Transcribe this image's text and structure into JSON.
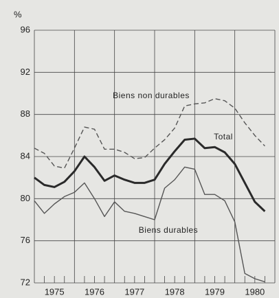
{
  "chart_data": {
    "type": "line",
    "y_unit": "%",
    "x": [
      1975,
      1975.25,
      1975.5,
      1975.75,
      1976,
      1976.25,
      1976.5,
      1976.75,
      1977,
      1977.25,
      1977.5,
      1977.75,
      1978,
      1978.25,
      1978.5,
      1978.75,
      1979,
      1979.25,
      1979.5,
      1979.75,
      1980,
      1980.25,
      1980.5,
      1980.75
    ],
    "series": [
      {
        "name": "Biens non durables",
        "color": "#555555",
        "style": "dashed",
        "width": 1.4,
        "values": [
          84.8,
          84.3,
          83.1,
          82.9,
          84.8,
          86.8,
          86.6,
          84.7,
          84.7,
          84.4,
          83.8,
          83.9,
          84.8,
          85.6,
          86.7,
          88.8,
          89.0,
          89.1,
          89.5,
          89.3,
          88.6,
          87.2,
          86.0,
          85.0
        ]
      },
      {
        "name": "Total",
        "color": "#2a2a2a",
        "style": "solid",
        "width": 3,
        "values": [
          82.0,
          81.3,
          81.1,
          81.6,
          82.6,
          84.0,
          83.0,
          81.7,
          82.2,
          81.8,
          81.5,
          81.5,
          81.8,
          83.3,
          84.5,
          85.6,
          85.7,
          84.8,
          84.9,
          84.4,
          83.3,
          81.5,
          79.7,
          78.8
        ]
      },
      {
        "name": "Biens durables",
        "color": "#555555",
        "style": "solid",
        "width": 1.4,
        "values": [
          79.8,
          78.6,
          79.5,
          80.2,
          80.6,
          81.5,
          80.0,
          78.3,
          79.7,
          78.8,
          78.6,
          78.3,
          78.0,
          81.0,
          81.8,
          83.0,
          82.8,
          80.4,
          80.4,
          79.8,
          77.8,
          72.9,
          72.4,
          72.1
        ]
      }
    ],
    "xlim": [
      1975,
      1981
    ],
    "xgrid": [
      1975,
      1976,
      1977,
      1978,
      1979,
      1980,
      1981
    ],
    "xticks": [
      {
        "value": 1975.5,
        "label": "1975"
      },
      {
        "value": 1976.5,
        "label": "1976"
      },
      {
        "value": 1977.5,
        "label": "1977"
      },
      {
        "value": 1978.5,
        "label": "1978"
      },
      {
        "value": 1979.5,
        "label": "1979"
      },
      {
        "value": 1980.5,
        "label": "1980"
      }
    ],
    "ylim": [
      72,
      96
    ],
    "yticks": [
      72,
      76,
      80,
      84,
      88,
      92,
      96
    ],
    "grid": true
  }
}
